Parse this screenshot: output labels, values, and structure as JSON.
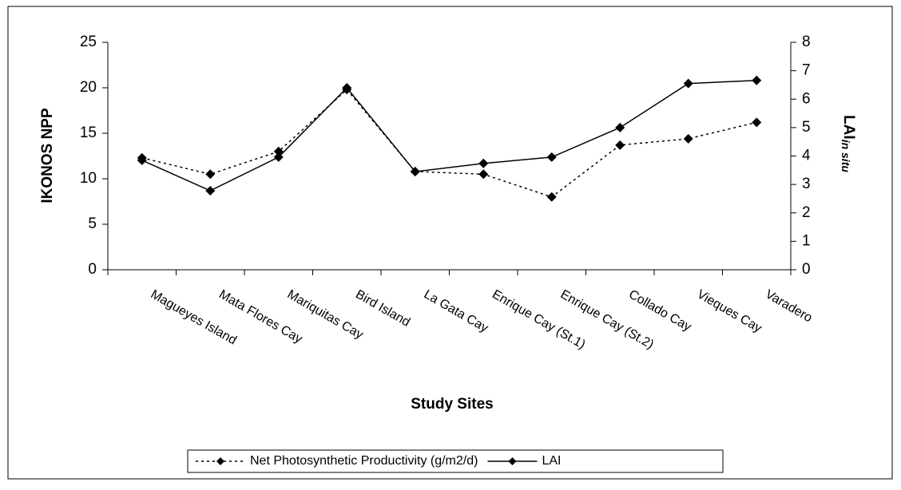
{
  "chart_data": {
    "type": "line",
    "ylabel": "IKONOS NPP",
    "xlabel": "Study Sites",
    "y2label": "LAI",
    "y2label_sub": "in situ",
    "categories": [
      "Magueyes Island",
      "Mata Flores Cay",
      "Mariquitas Cay",
      "Bird Island",
      "La Gata Cay",
      "Enrique Cay (St.1)",
      "Enrique Cay (St.2)",
      "Collado Cay",
      "Vieques Cay",
      "Varadero"
    ],
    "series": [
      {
        "name": "Net Photosynthetic Productivity (g/m2/d)",
        "color": "#000000",
        "dashed": true,
        "values": [
          12.3,
          10.5,
          13.0,
          19.8,
          10.8,
          10.5,
          8.0,
          13.7,
          14.4,
          16.2
        ]
      },
      {
        "name": "LAI",
        "color": "#000000",
        "dashed": false,
        "axis": "y2",
        "values": [
          3.85,
          2.78,
          3.96,
          6.4,
          3.45,
          3.74,
          3.96,
          5.0,
          6.55,
          6.66
        ]
      }
    ],
    "ylim": [
      0,
      25
    ],
    "yticks": [
      0,
      5,
      10,
      15,
      20,
      25
    ],
    "y2lim": [
      0,
      8
    ],
    "y2ticks": [
      0,
      1,
      2,
      3,
      4,
      5,
      6,
      7,
      8
    ],
    "grid": false,
    "legend": "bottom"
  }
}
